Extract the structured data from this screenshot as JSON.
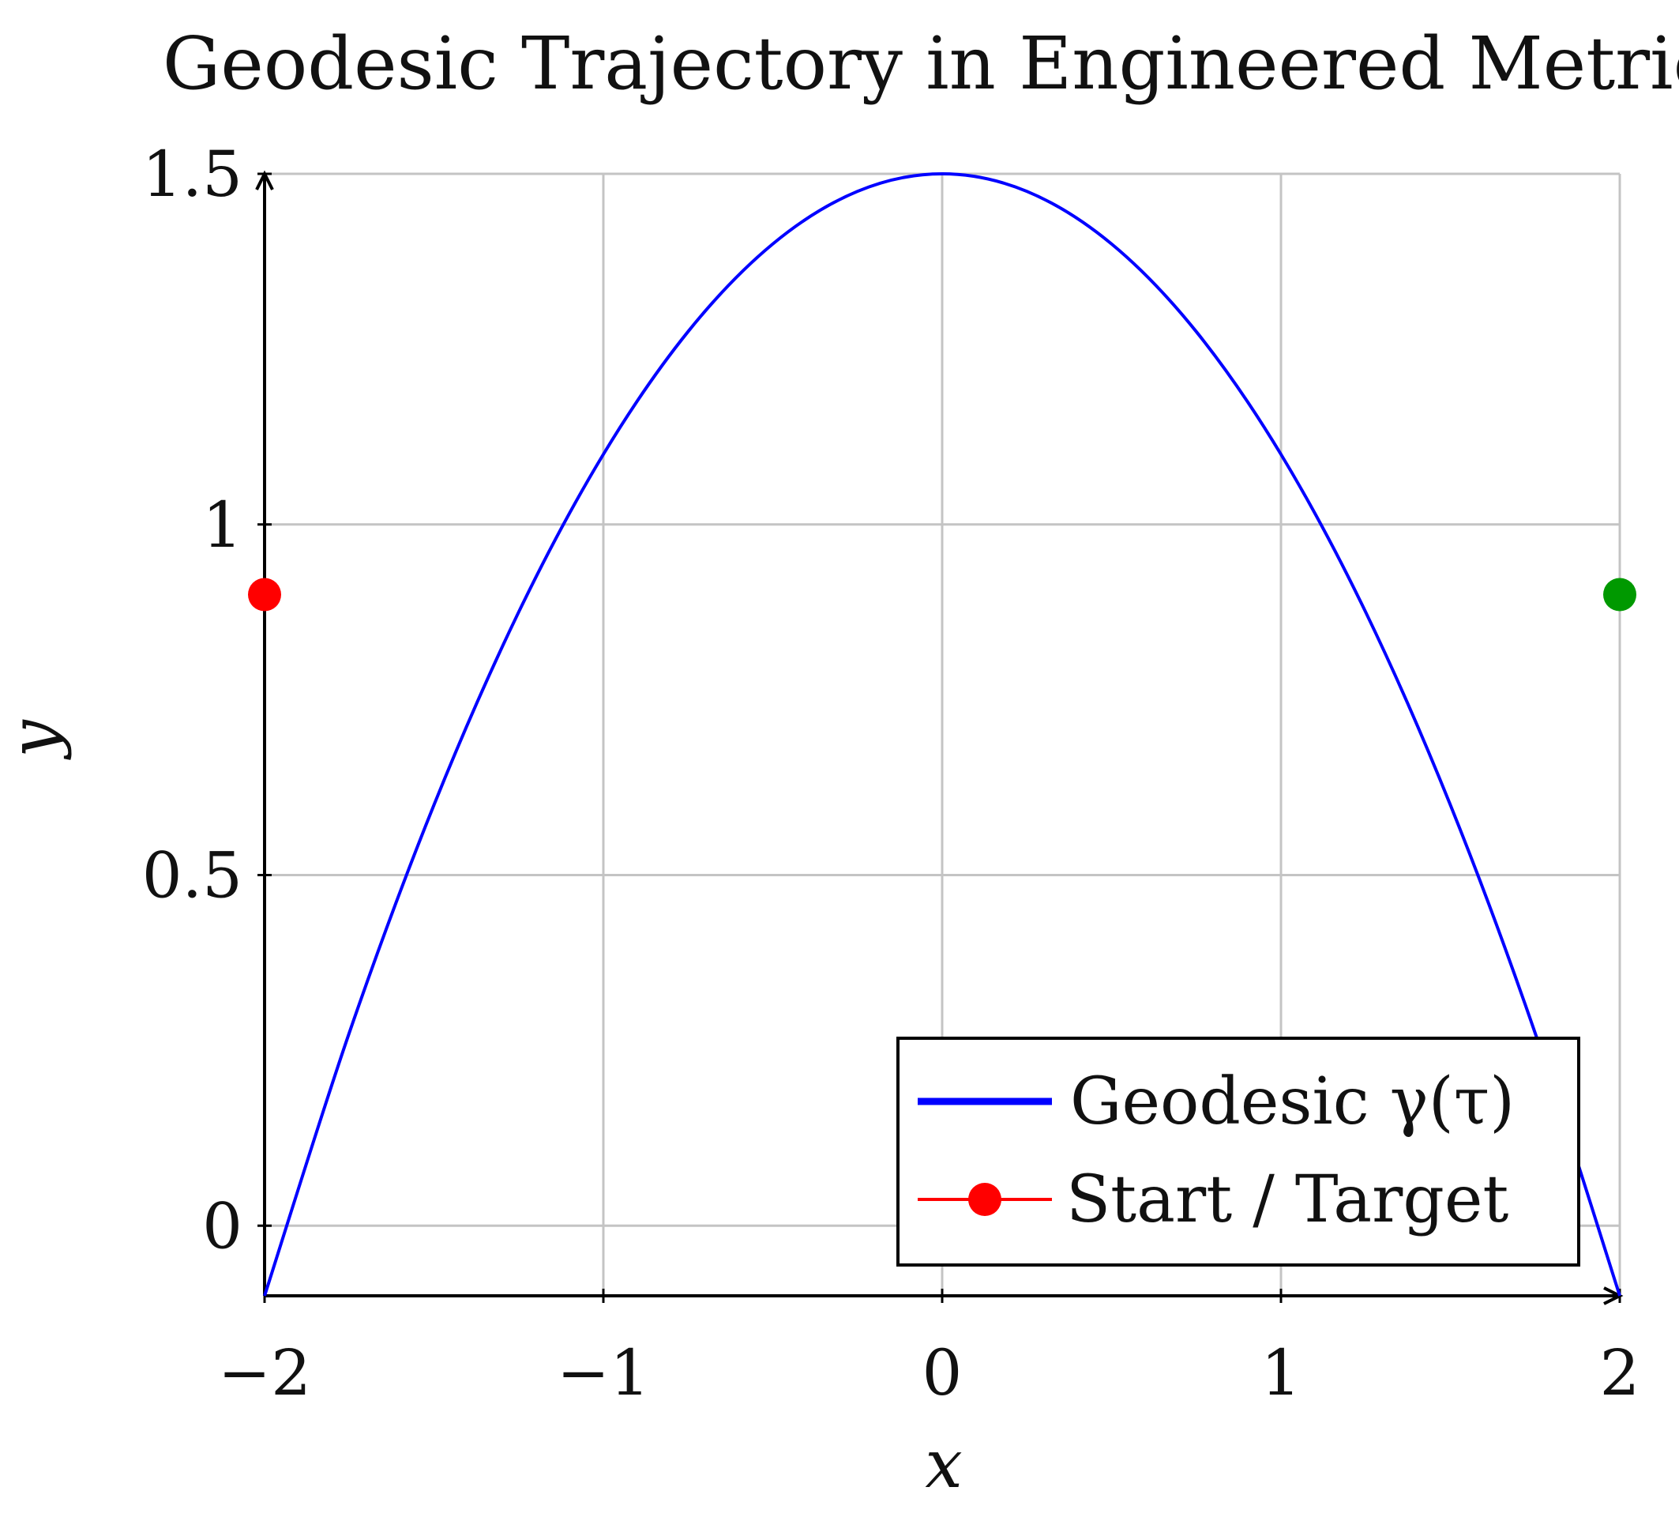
{
  "chart_data": {
    "type": "line",
    "title": "Geodesic Trajectory in Engineered Metric",
    "xlabel": "x",
    "ylabel": "y",
    "xlim": [
      -2,
      2
    ],
    "ylim": [
      -0.1,
      1.5
    ],
    "xticks": [
      {
        "value": -2,
        "label": "−2"
      },
      {
        "value": -1,
        "label": "−1"
      },
      {
        "value": 0,
        "label": "0"
      },
      {
        "value": 1,
        "label": "1"
      },
      {
        "value": 2,
        "label": "2"
      }
    ],
    "yticks": [
      {
        "value": 0,
        "label": "0"
      },
      {
        "value": 0.5,
        "label": "0.5"
      },
      {
        "value": 1,
        "label": "1"
      },
      {
        "value": 1.5,
        "label": "1.5"
      }
    ],
    "grid": true,
    "legend_position": "bottom-right",
    "series": [
      {
        "name": "Geodesic γ(τ)",
        "color": "#0000ff",
        "x": [
          -2.0,
          -1.75,
          -1.5,
          -1.25,
          -1.0,
          -0.75,
          -0.5,
          -0.25,
          0.0,
          0.25,
          0.5,
          0.75,
          1.0,
          1.25,
          1.5,
          1.75,
          2.0
        ],
        "y": [
          -0.1,
          0.275,
          0.6,
          0.875,
          1.1,
          1.275,
          1.4,
          1.475,
          1.5,
          1.475,
          1.4,
          1.275,
          1.1,
          0.875,
          0.6,
          0.275,
          -0.1
        ]
      }
    ],
    "markers": [
      {
        "name": "Start",
        "x": -2,
        "y": 0.9,
        "color": "#ff0000"
      },
      {
        "name": "Target",
        "x": 2,
        "y": 0.9,
        "color": "#009900"
      }
    ],
    "legend": [
      {
        "label": "Geodesic γ(τ)",
        "style": "line",
        "color": "#0000ff"
      },
      {
        "label": "Start / Target",
        "style": "line-marker",
        "color": "#ff0000"
      }
    ]
  }
}
